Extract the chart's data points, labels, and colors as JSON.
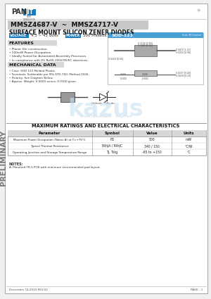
{
  "bg_color": "#f0f0f0",
  "page_bg": "#ffffff",
  "border_color": "#cccccc",
  "title_part": "MMSZ4687-V  ~  MMSZ4717-V",
  "subtitle": "SURFACE MOUNT SILICON ZENER DIODES",
  "voltage_label": "VOLTAGE",
  "voltage_value": "4.3 ~ 43 Volts",
  "power_label": "POWER",
  "power_value": "500 mWatts",
  "package_label": "SOD-123",
  "features_title": "FEATURES",
  "features": [
    "Planar Die construction.",
    "500mW Power Dissipation.",
    "Ideally Suited for Automated Assembly Processes.",
    "In compliance with EU RoHS 2002/95/EC directives."
  ],
  "mech_title": "MECHANICAL DATA",
  "mech": [
    "Case: SOD 123 Molded Plastic.",
    "Terminals: Solderable per MIL-STD-750, Method 2026.",
    "Polarity: See Diagram Below.",
    "Approx. Weight: 0.0000 ounce, 0.0100 gram."
  ],
  "table_title": "MAXIMUM RATINGS AND ELECTRICAL CHARACTERISTICS",
  "table_headers": [
    "Parameter",
    "Symbol",
    "Value",
    "Units"
  ],
  "notes_title": "NOTES:",
  "notes": "A. Mounted FR-5 PCB with minimum recommended pad layout.",
  "footer_left": "December 14,2010 REV.02",
  "footer_right": "PAGE : 1",
  "preliminary_text": "PRELIMINARY",
  "panjit_color": "#1a7bbf",
  "voltage_bg": "#1a7bbf",
  "power_bg": "#1a7bbf",
  "package_bg": "#4a9fd4",
  "title_box_bg": "#c8c8c8",
  "header_row_bg": "#d8d8d8",
  "table_line_color": "#999999",
  "rows_data": [
    [
      "Maximum Power Dissipation (Notes A) at T=+75°C",
      "PD",
      "500",
      "mW"
    ],
    [
      "Typical Thermal Resistance",
      "RthJA / RthJC",
      "340 / 150",
      "°C/W"
    ],
    [
      "Operating Junction and Storage Temperature Range",
      "TJ, Tstg",
      "-65 to +150",
      "°C"
    ]
  ]
}
